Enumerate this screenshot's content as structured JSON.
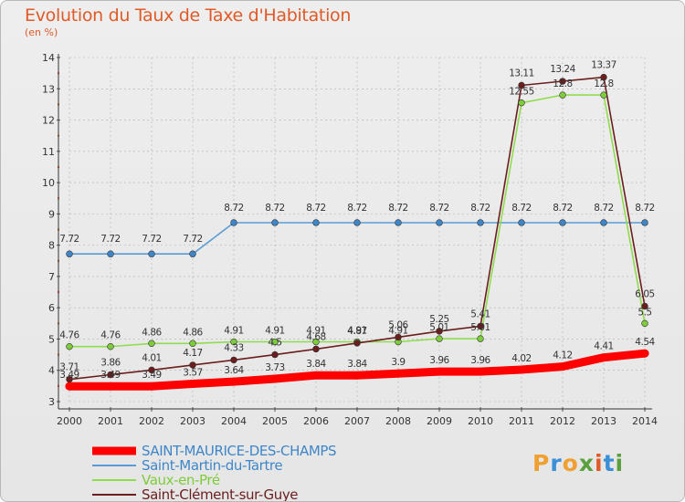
{
  "title": "Evolution du Taux de Taxe d'Habitation",
  "subtitle": "(en %)",
  "logo_text": "Proxiti",
  "colors": {
    "title": "#e05a28",
    "series": [
      "#ff0000",
      "#5b9bd5",
      "#8fdc4e",
      "#6b1e1e"
    ],
    "markers": [
      "#ff0000",
      "#3f86c9",
      "#7ecb3c",
      "#6b1e1e"
    ],
    "logo": [
      "#f0a030",
      "#3b8fd6",
      "#f0a030",
      "#5aa03c",
      "#e05a28",
      "#3b8fd6",
      "#5aa03c"
    ]
  },
  "chart_data": {
    "type": "line",
    "title": "Evolution du Taux de Taxe d'Habitation",
    "subtitle": "(en %)",
    "x": [
      2000,
      2001,
      2002,
      2003,
      2004,
      2005,
      2006,
      2007,
      2008,
      2009,
      2010,
      2011,
      2012,
      2013,
      2014
    ],
    "xlabel": "",
    "ylabel": "",
    "ylim": [
      3,
      14
    ],
    "yticks": [
      3,
      4,
      5,
      6,
      7,
      8,
      9,
      10,
      11,
      12,
      13,
      14
    ],
    "grid": true,
    "legend": "bottom-left",
    "series": [
      {
        "name": "SAINT-MAURICE-DES-CHAMPS",
        "values": [
          3.49,
          3.49,
          3.49,
          3.57,
          3.64,
          3.73,
          3.84,
          3.84,
          3.9,
          3.96,
          3.96,
          4.02,
          4.12,
          4.41,
          4.54
        ],
        "labels": [
          "3.49",
          "3.49",
          "3.49",
          "3.57",
          "3.64",
          "3.73",
          "3.84",
          "3.84",
          "3.9",
          "3.96",
          "3.96",
          "4.02",
          "4.12",
          "4.41",
          "4.54"
        ]
      },
      {
        "name": "Saint-Martin-du-Tartre",
        "values": [
          7.72,
          7.72,
          7.72,
          7.72,
          8.72,
          8.72,
          8.72,
          8.72,
          8.72,
          8.72,
          8.72,
          8.72,
          8.72,
          8.72,
          8.72
        ],
        "labels": [
          "7.72",
          "7.72",
          "7.72",
          "7.72",
          "8.72",
          "8.72",
          "8.72",
          "8.72",
          "8.72",
          "8.72",
          "8.72",
          "8.72",
          "8.72",
          "8.72",
          "8.72"
        ]
      },
      {
        "name": "Vaux-en-Pré",
        "values": [
          4.76,
          4.76,
          4.86,
          4.86,
          4.91,
          4.91,
          4.91,
          4.91,
          4.91,
          5.01,
          5.01,
          12.55,
          12.8,
          12.8,
          5.5
        ],
        "labels": [
          "4.76",
          "4.76",
          "4.86",
          "4.86",
          "4.91",
          "4.91",
          "4.91",
          "4.91",
          "4.91",
          "5.01",
          "5.01",
          "12.55",
          "12.8",
          "12.8",
          "5.5"
        ]
      },
      {
        "name": "Saint-Clément-sur-Guye",
        "values": [
          3.71,
          3.86,
          4.01,
          4.17,
          4.33,
          4.5,
          4.68,
          4.87,
          5.06,
          5.25,
          5.41,
          13.11,
          13.24,
          13.37,
          6.05
        ],
        "labels": [
          "3.71",
          "3.86",
          "4.01",
          "4.17",
          "4.33",
          "4.5",
          "4.68",
          "4.87",
          "5.06",
          "5.25",
          "5.41",
          "13.11",
          "13.24",
          "13.37",
          "6.05"
        ]
      }
    ]
  }
}
